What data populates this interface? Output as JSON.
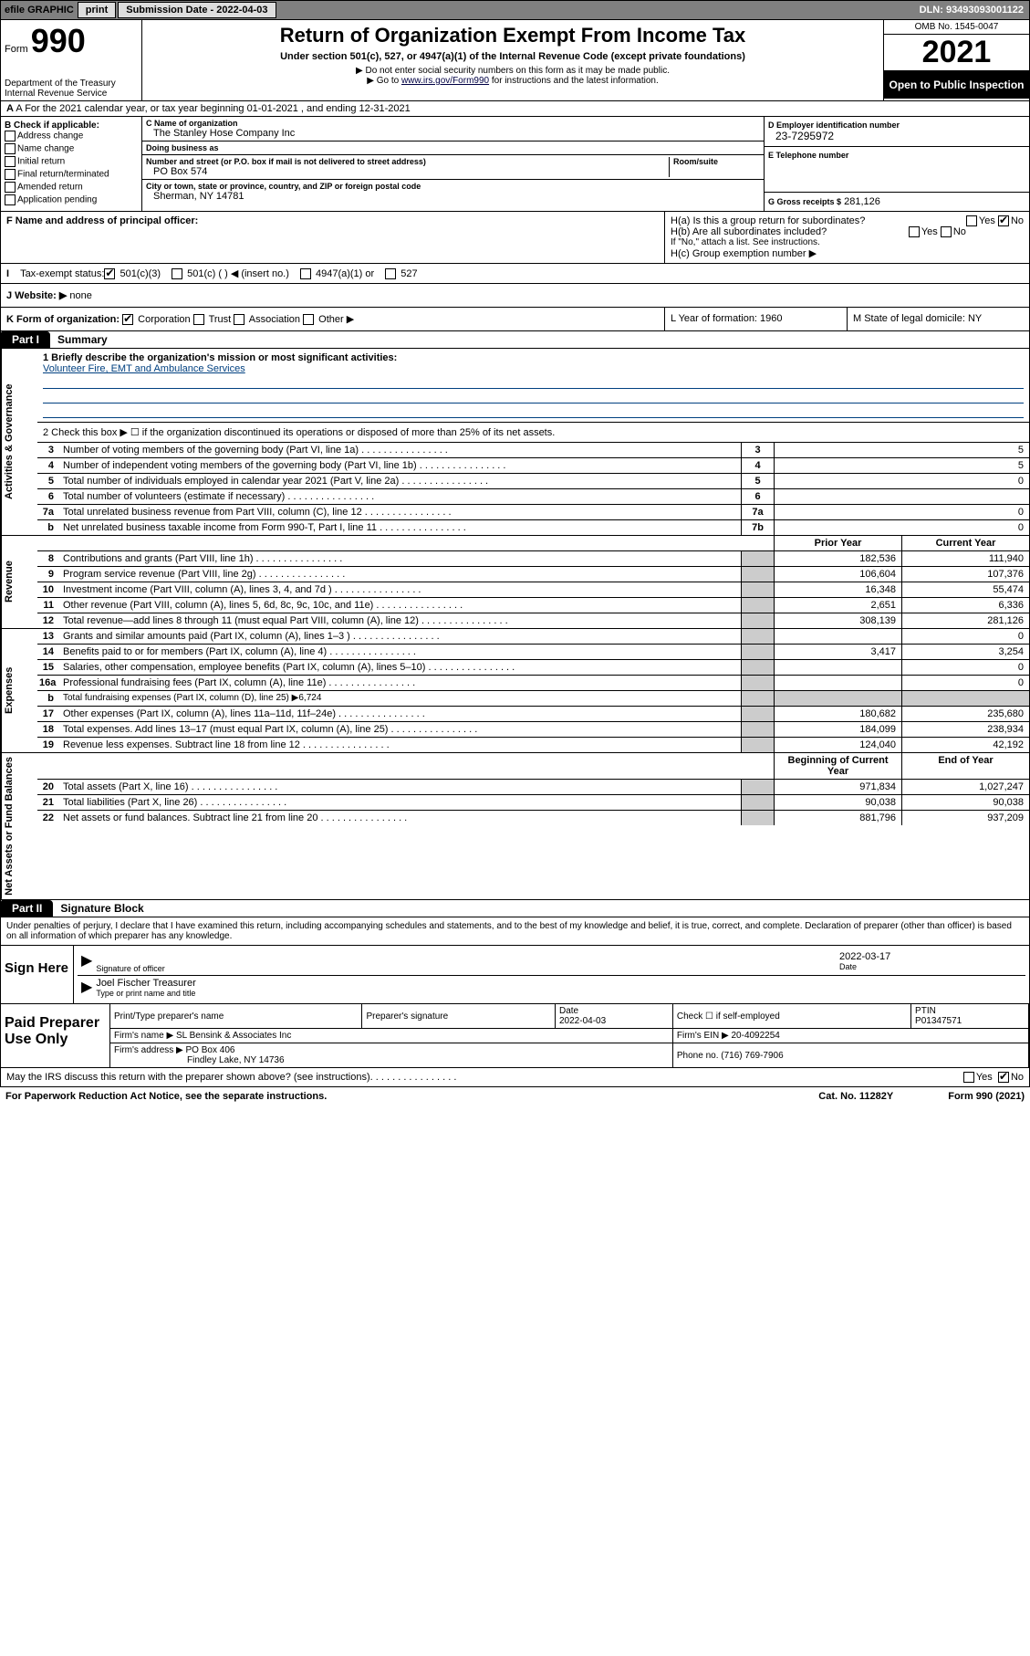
{
  "topbar": {
    "efile": "efile GRAPHIC",
    "print": "print",
    "sub_label": "Submission Date - 2022-04-03",
    "dln": "DLN: 93493093001122"
  },
  "header": {
    "form_word": "Form",
    "form_num": "990",
    "dept": "Department of the Treasury",
    "irs": "Internal Revenue Service",
    "title": "Return of Organization Exempt From Income Tax",
    "subtitle": "Under section 501(c), 527, or 4947(a)(1) of the Internal Revenue Code (except private foundations)",
    "note1": "▶ Do not enter social security numbers on this form as it may be made public.",
    "note2_pre": "▶ Go to ",
    "note2_link": "www.irs.gov/Form990",
    "note2_post": " for instructions and the latest information.",
    "omb": "OMB No. 1545-0047",
    "year": "2021",
    "open": "Open to Public Inspection"
  },
  "row_a": {
    "text": "A For the 2021 calendar year, or tax year beginning 01-01-2021    , and ending 12-31-2021"
  },
  "col_b": {
    "header": "B Check if applicable:",
    "items": [
      "Address change",
      "Name change",
      "Initial return",
      "Final return/terminated",
      "Amended return",
      "Application pending"
    ]
  },
  "col_c": {
    "name_lbl": "C Name of organization",
    "name": "The Stanley Hose Company Inc",
    "dba_lbl": "Doing business as",
    "dba": "",
    "addr_lbl": "Number and street (or P.O. box if mail is not delivered to street address)",
    "room_lbl": "Room/suite",
    "addr": "PO Box 574",
    "city_lbl": "City or town, state or province, country, and ZIP or foreign postal code",
    "city": "Sherman, NY  14781"
  },
  "col_d": {
    "ein_lbl": "D Employer identification number",
    "ein": "23-7295972",
    "phone_lbl": "E Telephone number",
    "phone": "",
    "gross_lbl": "G Gross receipts $",
    "gross": "281,126"
  },
  "row_f": {
    "label": "F Name and address of principal officer:",
    "value": ""
  },
  "row_h": {
    "ha": "H(a)  Is this a group return for subordinates?",
    "hb": "H(b)  Are all subordinates included?",
    "hb_note": "If \"No,\" attach a list. See instructions.",
    "hc": "H(c)  Group exemption number ▶",
    "yes": "Yes",
    "no": "No"
  },
  "row_i": {
    "label": "Tax-exempt status:",
    "o1": "501(c)(3)",
    "o2": "501(c) (  ) ◀ (insert no.)",
    "o3": "4947(a)(1) or",
    "o4": "527"
  },
  "row_j": {
    "label": "J   Website: ▶",
    "value": "none"
  },
  "row_k": {
    "label": "K Form of organization:",
    "o1": "Corporation",
    "o2": "Trust",
    "o3": "Association",
    "o4": "Other ▶",
    "l": "L Year of formation: 1960",
    "m": "M State of legal domicile: NY"
  },
  "part1": {
    "tab": "Part I",
    "title": "Summary"
  },
  "mission": {
    "q1": "1   Briefly describe the organization's mission or most significant activities:",
    "text": "Volunteer Fire, EMT and Ambulance Services",
    "q2": "2   Check this box ▶ ☐  if the organization discontinued its operations or disposed of more than 25% of its net assets."
  },
  "vlabels": {
    "gov": "Activities & Governance",
    "rev": "Revenue",
    "exp": "Expenses",
    "net": "Net Assets or Fund Balances"
  },
  "yearhdr": {
    "prior": "Prior Year",
    "current": "Current Year",
    "begin": "Beginning of Current Year",
    "end": "End of Year"
  },
  "gov_lines": [
    {
      "n": "3",
      "t": "Number of voting members of the governing body (Part VI, line 1a)",
      "box": "3",
      "v": "5"
    },
    {
      "n": "4",
      "t": "Number of independent voting members of the governing body (Part VI, line 1b)",
      "box": "4",
      "v": "5"
    },
    {
      "n": "5",
      "t": "Total number of individuals employed in calendar year 2021 (Part V, line 2a)",
      "box": "5",
      "v": "0"
    },
    {
      "n": "6",
      "t": "Total number of volunteers (estimate if necessary)",
      "box": "6",
      "v": ""
    },
    {
      "n": "7a",
      "t": "Total unrelated business revenue from Part VIII, column (C), line 12",
      "box": "7a",
      "v": "0"
    },
    {
      "n": "b",
      "t": "Net unrelated business taxable income from Form 990-T, Part I, line 11",
      "box": "7b",
      "v": "0"
    }
  ],
  "rev_lines": [
    {
      "n": "8",
      "t": "Contributions and grants (Part VIII, line 1h)",
      "pv": "182,536",
      "cv": "111,940"
    },
    {
      "n": "9",
      "t": "Program service revenue (Part VIII, line 2g)",
      "pv": "106,604",
      "cv": "107,376"
    },
    {
      "n": "10",
      "t": "Investment income (Part VIII, column (A), lines 3, 4, and 7d )",
      "pv": "16,348",
      "cv": "55,474"
    },
    {
      "n": "11",
      "t": "Other revenue (Part VIII, column (A), lines 5, 6d, 8c, 9c, 10c, and 11e)",
      "pv": "2,651",
      "cv": "6,336"
    },
    {
      "n": "12",
      "t": "Total revenue—add lines 8 through 11 (must equal Part VIII, column (A), line 12)",
      "pv": "308,139",
      "cv": "281,126"
    }
  ],
  "exp_lines": [
    {
      "n": "13",
      "t": "Grants and similar amounts paid (Part IX, column (A), lines 1–3 )",
      "pv": "",
      "cv": "0"
    },
    {
      "n": "14",
      "t": "Benefits paid to or for members (Part IX, column (A), line 4)",
      "pv": "3,417",
      "cv": "3,254"
    },
    {
      "n": "15",
      "t": "Salaries, other compensation, employee benefits (Part IX, column (A), lines 5–10)",
      "pv": "",
      "cv": "0"
    },
    {
      "n": "16a",
      "t": "Professional fundraising fees (Part IX, column (A), line 11e)",
      "pv": "",
      "cv": "0"
    },
    {
      "n": "b",
      "t": "Total fundraising expenses (Part IX, column (D), line 25) ▶6,724",
      "shaded": true
    },
    {
      "n": "17",
      "t": "Other expenses (Part IX, column (A), lines 11a–11d, 11f–24e)",
      "pv": "180,682",
      "cv": "235,680"
    },
    {
      "n": "18",
      "t": "Total expenses. Add lines 13–17 (must equal Part IX, column (A), line 25)",
      "pv": "184,099",
      "cv": "238,934"
    },
    {
      "n": "19",
      "t": "Revenue less expenses. Subtract line 18 from line 12",
      "pv": "124,040",
      "cv": "42,192"
    }
  ],
  "net_lines": [
    {
      "n": "20",
      "t": "Total assets (Part X, line 16)",
      "pv": "971,834",
      "cv": "1,027,247"
    },
    {
      "n": "21",
      "t": "Total liabilities (Part X, line 26)",
      "pv": "90,038",
      "cv": "90,038"
    },
    {
      "n": "22",
      "t": "Net assets or fund balances. Subtract line 21 from line 20",
      "pv": "881,796",
      "cv": "937,209"
    }
  ],
  "part2": {
    "tab": "Part II",
    "title": "Signature Block"
  },
  "sig": {
    "intro": "Under penalties of perjury, I declare that I have examined this return, including accompanying schedules and statements, and to the best of my knowledge and belief, it is true, correct, and complete. Declaration of preparer (other than officer) is based on all information of which preparer has any knowledge.",
    "sign_here": "Sign Here",
    "sig_officer": "Signature of officer",
    "date": "2022-03-17",
    "date_lbl": "Date",
    "name": "Joel Fischer Treasurer",
    "name_lbl": "Type or print name and title"
  },
  "prep": {
    "label": "Paid Preparer Use Only",
    "h1": "Print/Type preparer's name",
    "h2": "Preparer's signature",
    "h3": "Date",
    "h3v": "2022-04-03",
    "h4": "Check ☐ if self-employed",
    "h5": "PTIN",
    "h5v": "P01347571",
    "firm_lbl": "Firm's name    ▶",
    "firm": "SL Bensink & Associates Inc",
    "ein_lbl": "Firm's EIN ▶",
    "ein": "20-4092254",
    "addr_lbl": "Firm's address ▶",
    "addr1": "PO Box 406",
    "addr2": "Findley Lake, NY  14736",
    "phone_lbl": "Phone no.",
    "phone": "(716) 769-7906"
  },
  "footer": {
    "q": "May the IRS discuss this return with the preparer shown above? (see instructions)",
    "yes": "Yes",
    "no": "No",
    "paperwork": "For Paperwork Reduction Act Notice, see the separate instructions.",
    "cat": "Cat. No. 11282Y",
    "form": "Form 990 (2021)"
  }
}
